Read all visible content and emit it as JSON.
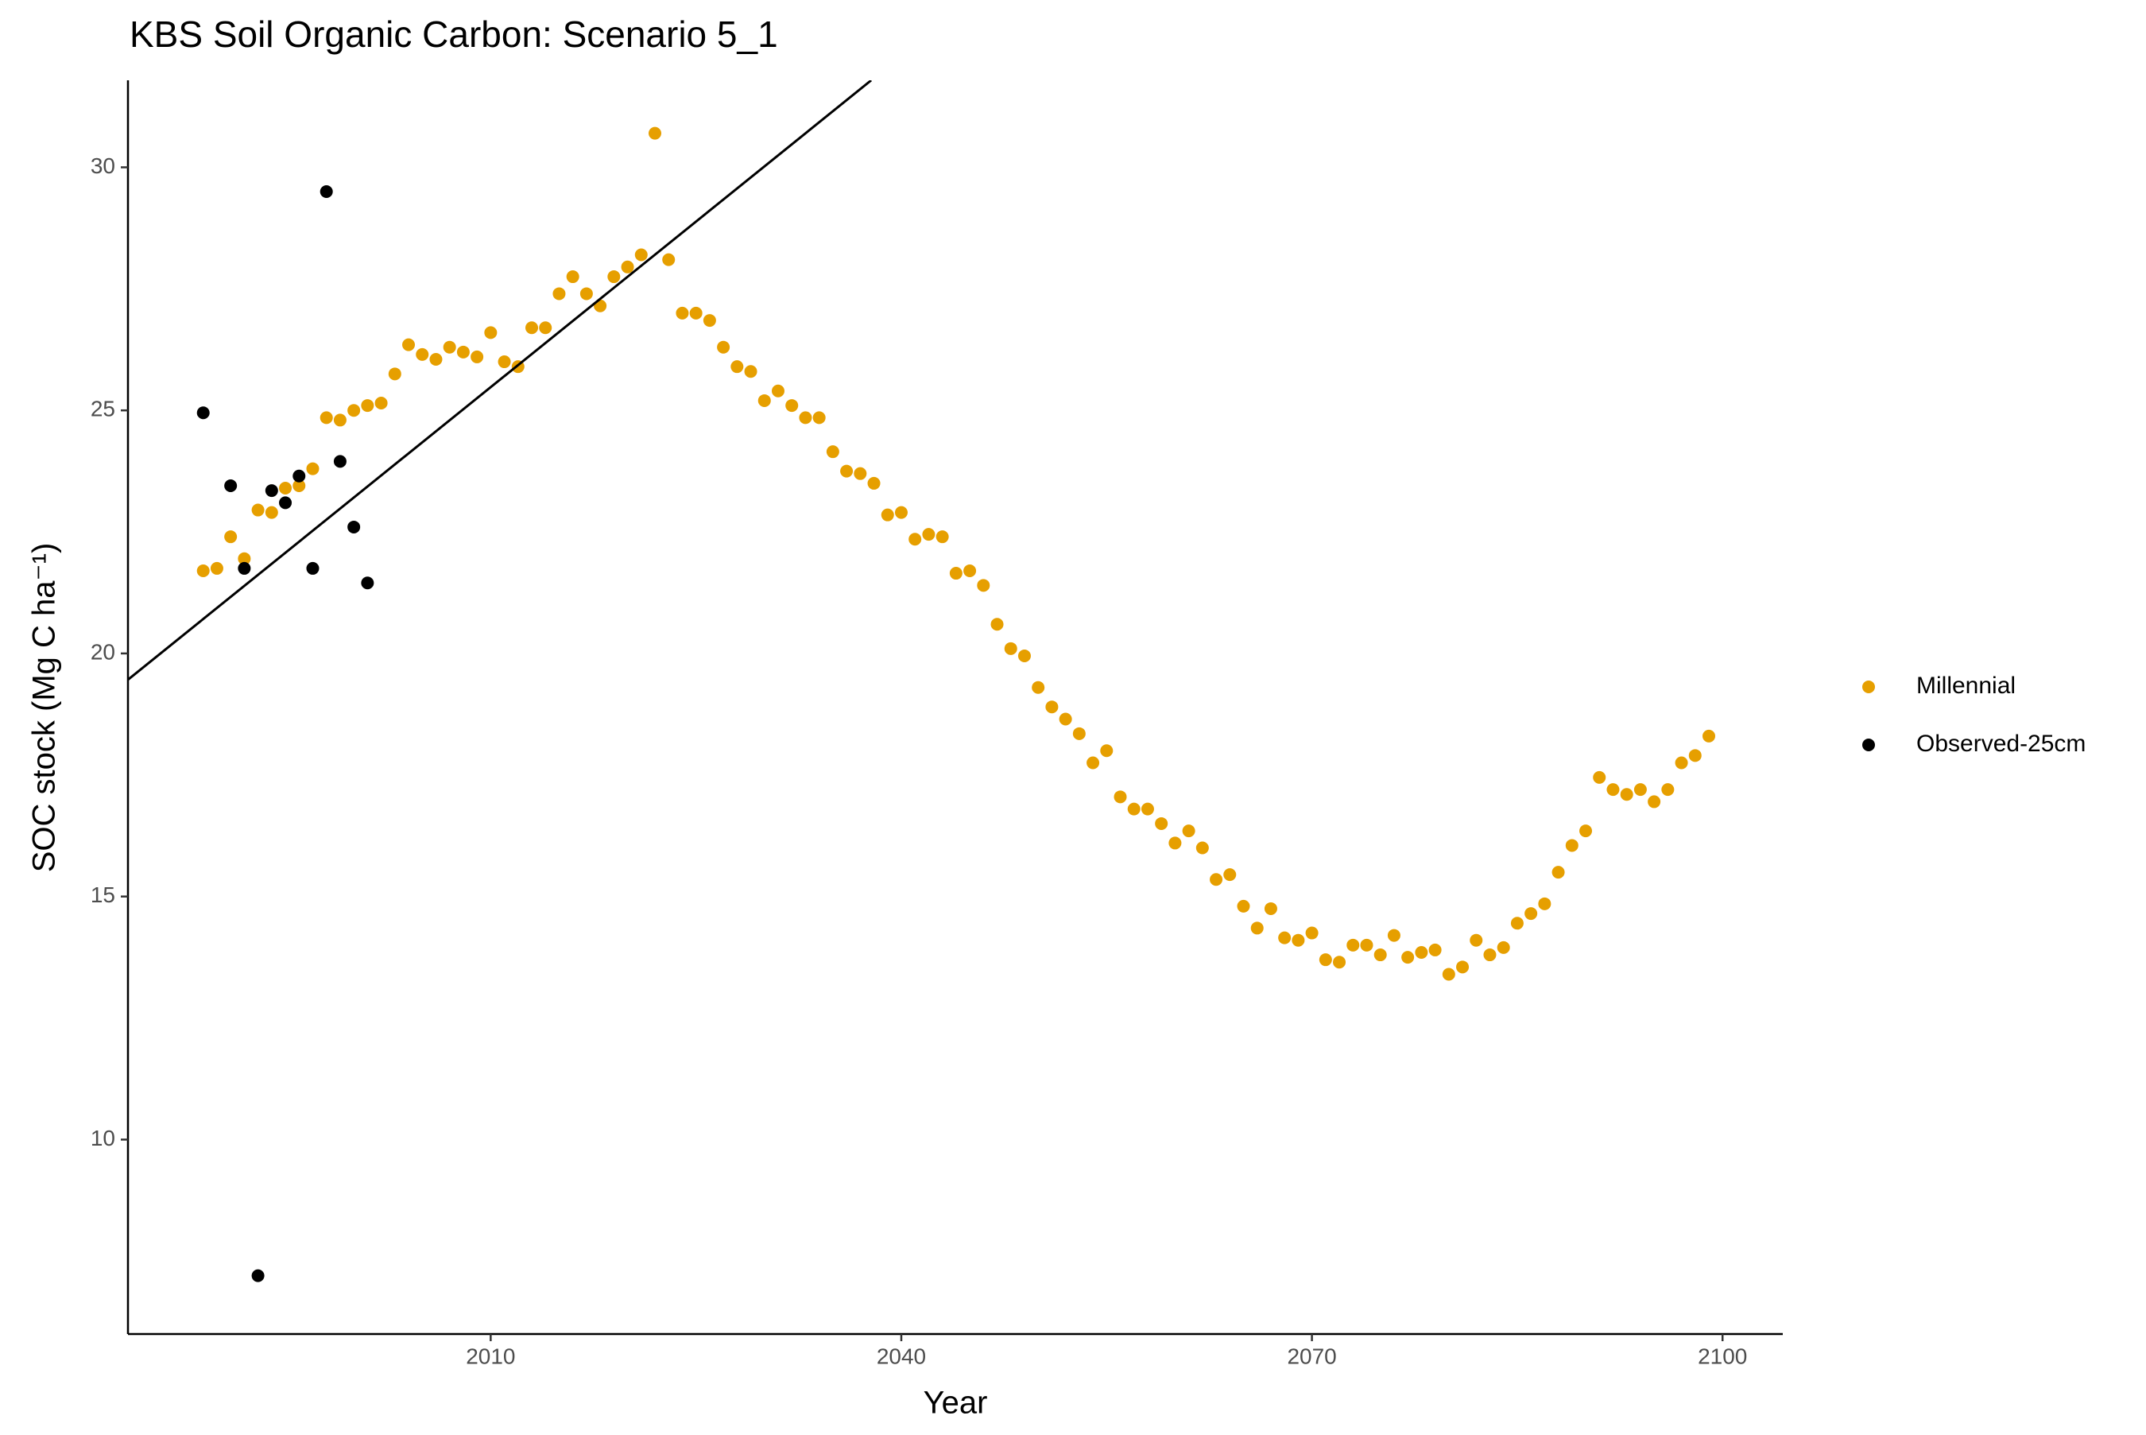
{
  "chart_data": {
    "type": "scatter",
    "title": "KBS Soil Organic Carbon: Scenario  5_1",
    "x_label": "Year",
    "y_label": "SOC stock (Mg C ha⁻¹)",
    "xlim": [
      1983.5,
      2104.4
    ],
    "ylim": [
      6.0,
      31.79
    ],
    "xticks": [
      2010,
      2040,
      2070,
      2100
    ],
    "yticks": [
      10,
      15,
      20,
      25,
      30
    ],
    "grid": false,
    "legend": "right",
    "series": [
      {
        "name": "Millennial",
        "color": "#E69F00",
        "x": [
          1989,
          1990,
          1991,
          1992,
          1993,
          1994,
          1995,
          1996,
          1997,
          1998,
          1999,
          2000,
          2001,
          2002,
          2003,
          2004,
          2005,
          2006,
          2007,
          2008,
          2009,
          2010,
          2011,
          2012,
          2013,
          2014,
          2015,
          2016,
          2017,
          2018,
          2019,
          2020,
          2021,
          2022,
          2023,
          2024,
          2025,
          2026,
          2027,
          2028,
          2029,
          2030,
          2031,
          2032,
          2033,
          2034,
          2035,
          2036,
          2037,
          2038,
          2039,
          2040,
          2041,
          2042,
          2043,
          2044,
          2045,
          2046,
          2047,
          2048,
          2049,
          2050,
          2051,
          2052,
          2053,
          2054,
          2055,
          2056,
          2057,
          2058,
          2059,
          2060,
          2061,
          2062,
          2063,
          2064,
          2065,
          2066,
          2067,
          2068,
          2069,
          2070,
          2071,
          2072,
          2073,
          2074,
          2075,
          2076,
          2077,
          2078,
          2079,
          2080,
          2081,
          2082,
          2083,
          2084,
          2085,
          2086,
          2087,
          2088,
          2089,
          2090,
          2091,
          2092,
          2093,
          2094,
          2095,
          2096,
          2097,
          2098,
          2099
        ],
        "values": [
          21.7,
          21.75,
          22.4,
          21.95,
          22.95,
          22.9,
          23.4,
          23.45,
          23.8,
          24.85,
          24.8,
          25.0,
          25.1,
          25.15,
          25.75,
          26.35,
          26.15,
          26.05,
          26.3,
          26.2,
          26.1,
          26.6,
          26.0,
          25.9,
          26.7,
          26.7,
          27.4,
          27.75,
          27.4,
          27.15,
          27.75,
          27.95,
          28.2,
          30.7,
          28.1,
          27.0,
          27.0,
          26.85,
          26.3,
          25.9,
          25.8,
          25.2,
          25.4,
          25.1,
          24.85,
          24.85,
          24.15,
          23.75,
          23.7,
          23.5,
          22.85,
          22.9,
          22.35,
          22.45,
          22.4,
          21.65,
          21.7,
          21.4,
          20.6,
          20.1,
          19.95,
          19.3,
          18.9,
          18.65,
          18.35,
          17.75,
          18.0,
          17.05,
          16.8,
          16.8,
          16.5,
          16.1,
          16.35,
          16.0,
          15.35,
          15.45,
          14.8,
          14.35,
          14.75,
          14.15,
          14.1,
          14.25,
          13.7,
          13.65,
          14.0,
          14.0,
          13.8,
          14.2,
          13.75,
          13.85,
          13.9,
          13.4,
          13.55,
          14.1,
          13.8,
          13.95,
          14.45,
          14.65,
          14.85,
          15.5,
          16.05,
          16.35,
          17.45,
          17.2,
          17.1,
          17.2,
          16.95,
          17.2,
          17.75,
          17.9,
          18.3
        ]
      },
      {
        "name": "Observed-25cm",
        "color": "#000000",
        "x": [
          1989,
          1991,
          1992,
          1993,
          1994,
          1995,
          1996,
          1997,
          1998,
          1999,
          2000,
          2001
        ],
        "values": [
          24.95,
          23.45,
          21.75,
          7.2,
          23.35,
          23.1,
          23.65,
          21.75,
          29.5,
          23.95,
          22.6,
          21.45
        ]
      }
    ],
    "fit_line": {
      "color": "#000000",
      "x": [
        1983.5,
        2037.8
      ],
      "values": [
        19.46,
        31.79
      ]
    }
  }
}
